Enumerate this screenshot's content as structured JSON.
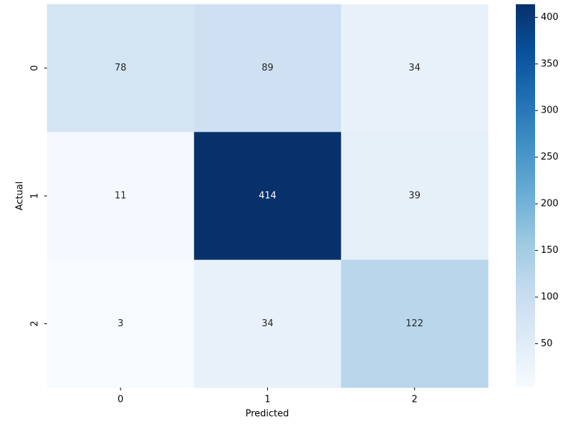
{
  "chart_data": {
    "type": "heatmap",
    "x_label": "Predicted",
    "y_label": "Actual",
    "x_categories": [
      "0",
      "1",
      "2"
    ],
    "y_categories": [
      "0",
      "1",
      "2"
    ],
    "values": [
      [
        78,
        89,
        34
      ],
      [
        11,
        414,
        39
      ],
      [
        3,
        34,
        122
      ]
    ],
    "colormap": "Blues",
    "zlim": [
      3,
      414
    ],
    "zticks": [
      50,
      100,
      150,
      200,
      250,
      300,
      350,
      400
    ]
  }
}
